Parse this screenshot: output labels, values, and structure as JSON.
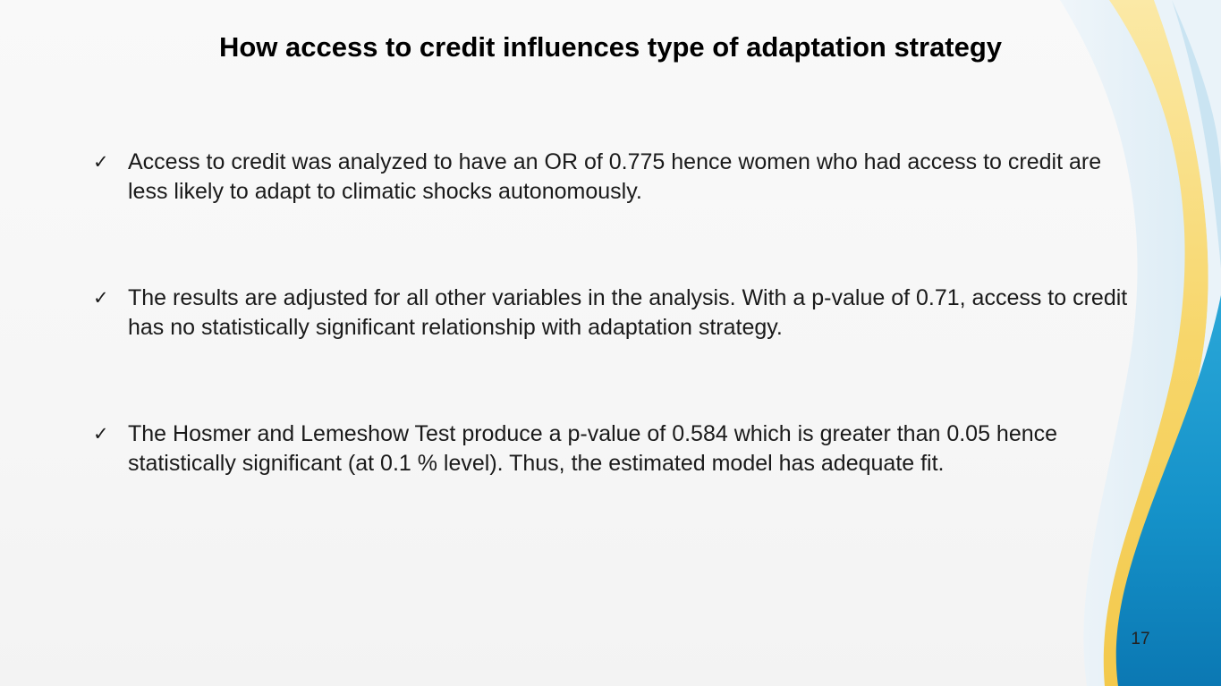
{
  "slide": {
    "title": "How access to credit influences type of adaptation strategy",
    "bullet_icon": "checkmark-icon",
    "bullet_glyph": "✓",
    "bullets": [
      {
        "text": "Access to credit was analyzed to have an OR of 0.775 hence women who had access to credit are less likely to adapt to climatic shocks autonomously."
      },
      {
        "text": "The results are adjusted for all other variables in the analysis. With a p-value of 0.71, access to credit has no statistically significant relationship with adaptation strategy."
      },
      {
        "text": "The Hosmer and Lemeshow Test produce a p-value of 0.584 which is greater than 0.05 hence statistically significant (at 0.1 % level). Thus, the estimated model has adequate fit."
      }
    ],
    "page_number": "17"
  },
  "theme": {
    "background": "#f7f7f7",
    "wave_yellow": "#f7d66a",
    "wave_light_blue": "#cfe6f3",
    "wave_blue": "#1a9bd1",
    "wave_dark_blue": "#0d6ea8"
  }
}
